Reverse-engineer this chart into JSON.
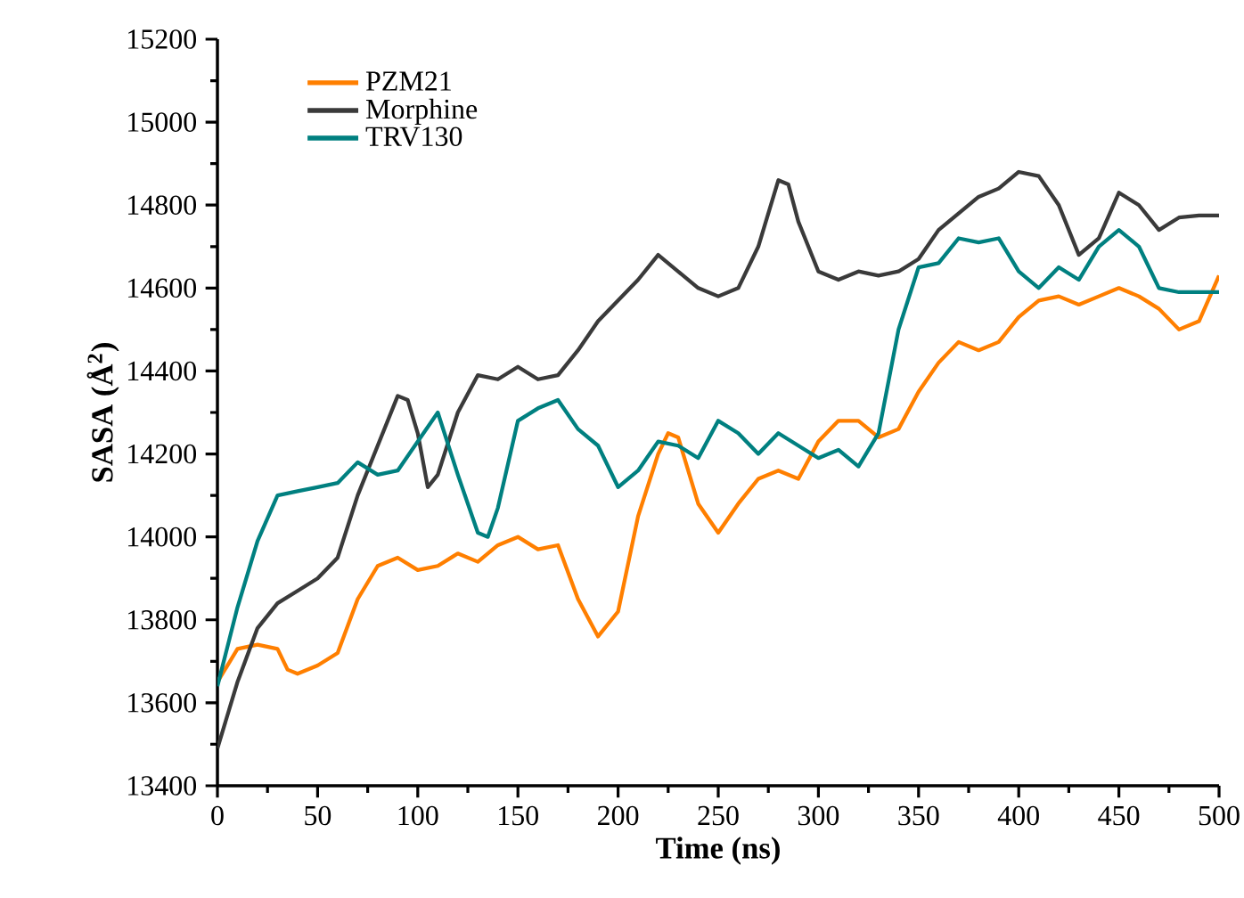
{
  "chart_data": {
    "type": "line",
    "xlabel": "Time (ns)",
    "ylabel": "SASA (Å$^{2}$)",
    "xlim": [
      0,
      500
    ],
    "ylim": [
      13400,
      15200
    ],
    "xticks": [
      0,
      50,
      100,
      150,
      200,
      250,
      300,
      350,
      400,
      450,
      500
    ],
    "yticks": [
      13400,
      13600,
      13800,
      14000,
      14200,
      14400,
      14600,
      14800,
      15000,
      15200
    ],
    "grid": false,
    "legend": "top left",
    "marker": "none",
    "line_style": "solid",
    "series": [
      {
        "name": "PZM21",
        "color": "#ff7f00",
        "x": [
          0,
          10,
          20,
          30,
          35,
          40,
          50,
          60,
          70,
          80,
          90,
          100,
          110,
          120,
          130,
          140,
          150,
          160,
          170,
          180,
          190,
          200,
          210,
          220,
          225,
          230,
          240,
          250,
          260,
          270,
          280,
          290,
          300,
          310,
          320,
          330,
          340,
          350,
          360,
          370,
          380,
          390,
          400,
          410,
          420,
          430,
          440,
          450,
          460,
          470,
          480,
          490,
          500
        ],
        "values": [
          13650,
          13730,
          13740,
          13730,
          13680,
          13670,
          13690,
          13720,
          13850,
          13930,
          13950,
          13920,
          13930,
          13960,
          13940,
          13980,
          14000,
          13970,
          13980,
          13850,
          13760,
          13820,
          14050,
          14200,
          14250,
          14240,
          14080,
          14010,
          14080,
          14140,
          14160,
          14140,
          14230,
          14280,
          14280,
          14240,
          14260,
          14350,
          14420,
          14470,
          14450,
          14470,
          14530,
          14570,
          14580,
          14560,
          14580,
          14600,
          14580,
          14550,
          14500,
          14520,
          14630
        ]
      },
      {
        "name": "Morphine",
        "color": "#3a3a3a",
        "x": [
          0,
          10,
          20,
          30,
          40,
          50,
          60,
          70,
          80,
          90,
          95,
          100,
          105,
          110,
          120,
          130,
          140,
          150,
          160,
          170,
          180,
          190,
          200,
          210,
          220,
          230,
          240,
          250,
          260,
          270,
          280,
          285,
          290,
          300,
          310,
          320,
          330,
          340,
          350,
          360,
          370,
          380,
          390,
          400,
          410,
          420,
          430,
          440,
          450,
          460,
          470,
          480,
          490,
          500
        ],
        "values": [
          13490,
          13650,
          13780,
          13840,
          13870,
          13900,
          13950,
          14100,
          14220,
          14340,
          14330,
          14250,
          14120,
          14150,
          14300,
          14390,
          14380,
          14410,
          14380,
          14390,
          14450,
          14520,
          14570,
          14620,
          14680,
          14640,
          14600,
          14580,
          14600,
          14700,
          14860,
          14850,
          14760,
          14640,
          14620,
          14640,
          14630,
          14640,
          14670,
          14740,
          14780,
          14820,
          14840,
          14880,
          14870,
          14800,
          14680,
          14720,
          14830,
          14800,
          14740,
          14770,
          14775,
          14775
        ]
      },
      {
        "name": "TRV130",
        "color": "#008080",
        "x": [
          0,
          10,
          20,
          30,
          40,
          50,
          60,
          70,
          80,
          90,
          100,
          110,
          120,
          130,
          135,
          140,
          150,
          160,
          170,
          180,
          190,
          200,
          210,
          220,
          230,
          240,
          250,
          260,
          270,
          280,
          290,
          300,
          310,
          320,
          330,
          340,
          350,
          360,
          370,
          380,
          390,
          400,
          410,
          420,
          430,
          440,
          450,
          460,
          470,
          480,
          500
        ],
        "values": [
          13640,
          13830,
          13990,
          14100,
          14110,
          14120,
          14130,
          14180,
          14150,
          14160,
          14230,
          14300,
          14150,
          14010,
          14000,
          14070,
          14280,
          14310,
          14330,
          14260,
          14220,
          14120,
          14160,
          14230,
          14220,
          14190,
          14280,
          14250,
          14200,
          14250,
          14220,
          14190,
          14210,
          14170,
          14250,
          14500,
          14650,
          14660,
          14720,
          14710,
          14720,
          14640,
          14600,
          14650,
          14620,
          14700,
          14740,
          14700,
          14600,
          14590,
          14590
        ]
      }
    ]
  }
}
